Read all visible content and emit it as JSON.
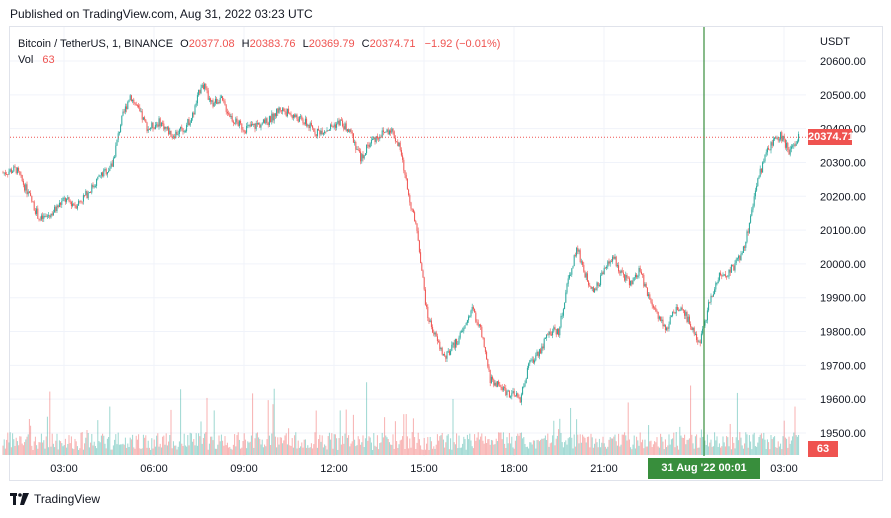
{
  "header": {
    "published": "Published on TradingView.com, Aug 31, 2022 03:23 UTC"
  },
  "legend": {
    "symbol": "Bitcoin / TetherUS, 1, BINANCE",
    "o_label": "O",
    "o_value": "20377.08",
    "h_label": "H",
    "h_value": "20383.76",
    "l_label": "L",
    "l_value": "20369.79",
    "c_label": "C",
    "c_value": "20374.71",
    "change": "−1.92 (−0.01%)",
    "vol_label": "Vol",
    "vol_value": "63"
  },
  "axis": {
    "currency": "USDT",
    "price_tag": "20374.71",
    "volume_tag": "63",
    "crosshair_label": "31 Aug '22   00:01"
  },
  "footer": {
    "brand": "TradingView"
  },
  "colors": {
    "up": "#26a69a",
    "down": "#ef5350",
    "crosshair": "#388e3c",
    "grid": "#f0f3fa"
  },
  "chart_data": {
    "type": "line",
    "title": "Bitcoin / TetherUS, 1, BINANCE",
    "interval": "1 minute",
    "ylim": [
      19450,
      20650
    ],
    "y_ticks": [
      "20600.00",
      "20500.00",
      "20400.00",
      "20300.00",
      "20200.00",
      "20100.00",
      "20000.00",
      "19900.00",
      "19800.00",
      "19700.00",
      "19600.00",
      "19500.00"
    ],
    "x_ticks": [
      "03:00",
      "06:00",
      "09:00",
      "12:00",
      "15:00",
      "18:00",
      "21:00",
      "03:00"
    ],
    "x_range_hours": [
      0.95,
      27.5
    ],
    "last_price": 20374.71,
    "series": [
      {
        "values": [
          [
            1.0,
            20270
          ],
          [
            1.4,
            20280
          ],
          [
            1.8,
            20210
          ],
          [
            2.2,
            20130
          ],
          [
            2.6,
            20150
          ],
          [
            3.0,
            20190
          ],
          [
            3.4,
            20175
          ],
          [
            3.8,
            20210
          ],
          [
            4.2,
            20260
          ],
          [
            4.6,
            20290
          ],
          [
            4.9,
            20420
          ],
          [
            5.2,
            20500
          ],
          [
            5.5,
            20450
          ],
          [
            5.8,
            20400
          ],
          [
            6.2,
            20420
          ],
          [
            6.6,
            20380
          ],
          [
            7.0,
            20400
          ],
          [
            7.3,
            20440
          ],
          [
            7.6,
            20540
          ],
          [
            7.9,
            20470
          ],
          [
            8.2,
            20490
          ],
          [
            8.6,
            20430
          ],
          [
            9.0,
            20400
          ],
          [
            9.4,
            20410
          ],
          [
            9.8,
            20420
          ],
          [
            10.2,
            20460
          ],
          [
            10.6,
            20440
          ],
          [
            11.0,
            20420
          ],
          [
            11.4,
            20390
          ],
          [
            11.8,
            20400
          ],
          [
            12.2,
            20420
          ],
          [
            12.6,
            20380
          ],
          [
            12.9,
            20310
          ],
          [
            13.2,
            20360
          ],
          [
            13.5,
            20380
          ],
          [
            13.9,
            20400
          ],
          [
            14.2,
            20340
          ],
          [
            14.5,
            20200
          ],
          [
            14.8,
            20080
          ],
          [
            15.1,
            19850
          ],
          [
            15.4,
            19780
          ],
          [
            15.7,
            19720
          ],
          [
            16.0,
            19760
          ],
          [
            16.3,
            19800
          ],
          [
            16.6,
            19870
          ],
          [
            16.9,
            19800
          ],
          [
            17.2,
            19660
          ],
          [
            17.5,
            19640
          ],
          [
            17.8,
            19620
          ],
          [
            18.2,
            19600
          ],
          [
            18.5,
            19700
          ],
          [
            18.9,
            19750
          ],
          [
            19.2,
            19800
          ],
          [
            19.5,
            19800
          ],
          [
            19.8,
            19950
          ],
          [
            20.1,
            20050
          ],
          [
            20.4,
            19960
          ],
          [
            20.7,
            19920
          ],
          [
            21.0,
            19980
          ],
          [
            21.3,
            20020
          ],
          [
            21.6,
            19970
          ],
          [
            21.9,
            19940
          ],
          [
            22.2,
            19980
          ],
          [
            22.5,
            19900
          ],
          [
            22.8,
            19850
          ],
          [
            23.1,
            19810
          ],
          [
            23.4,
            19870
          ],
          [
            23.7,
            19850
          ],
          [
            24.0,
            19800
          ],
          [
            24.2,
            19770
          ],
          [
            24.5,
            19880
          ],
          [
            24.8,
            19960
          ],
          [
            25.1,
            19970
          ],
          [
            25.4,
            20000
          ],
          [
            25.7,
            20050
          ],
          [
            26.0,
            20200
          ],
          [
            26.3,
            20300
          ],
          [
            26.6,
            20360
          ],
          [
            26.9,
            20380
          ],
          [
            27.2,
            20330
          ],
          [
            27.5,
            20375
          ]
        ]
      }
    ]
  }
}
